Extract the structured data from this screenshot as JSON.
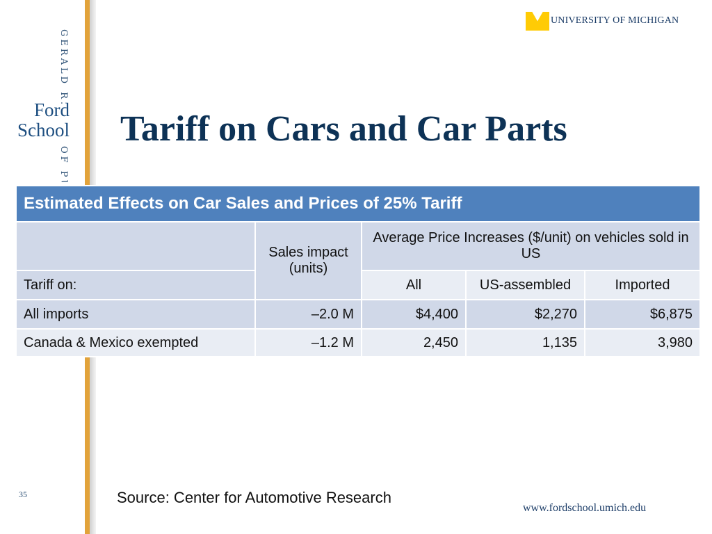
{
  "brand": {
    "vertical_top": "GERALD R.",
    "vertical_bottom": "OF PU",
    "logo_line1": "Ford",
    "logo_line2": "School",
    "university": "UNIVERSITY OF MICHIGAN",
    "colors": {
      "navy": "#0d3256",
      "gold": "#e2a33b",
      "maize": "#ffcb05",
      "table_header": "#4f81bd",
      "cell_dark": "#d0d8e8",
      "cell_light": "#e9edf4"
    }
  },
  "slide": {
    "title": "Tariff on Cars and Car Parts",
    "page_number": "35",
    "source": "Source:  Center for Automotive Research",
    "url": "www.fordschool.umich.edu"
  },
  "table": {
    "caption": "Estimated Effects on Car Sales and Prices of 25% Tariff",
    "sales_header": "Sales impact (units)",
    "price_header": "Average Price Increases ($/unit) on vehicles sold in US",
    "row_label_header": "Tariff on:",
    "columns": [
      "All",
      "US-assembled",
      "Imported"
    ],
    "rows": [
      {
        "label": "All imports",
        "sales": "–2.0 M",
        "values": [
          "$4,400",
          "$2,270",
          "$6,875"
        ]
      },
      {
        "label": "Canada & Mexico exempted",
        "sales": "–1.2 M",
        "values": [
          "2,450",
          "1,135",
          "3,980"
        ]
      }
    ]
  }
}
